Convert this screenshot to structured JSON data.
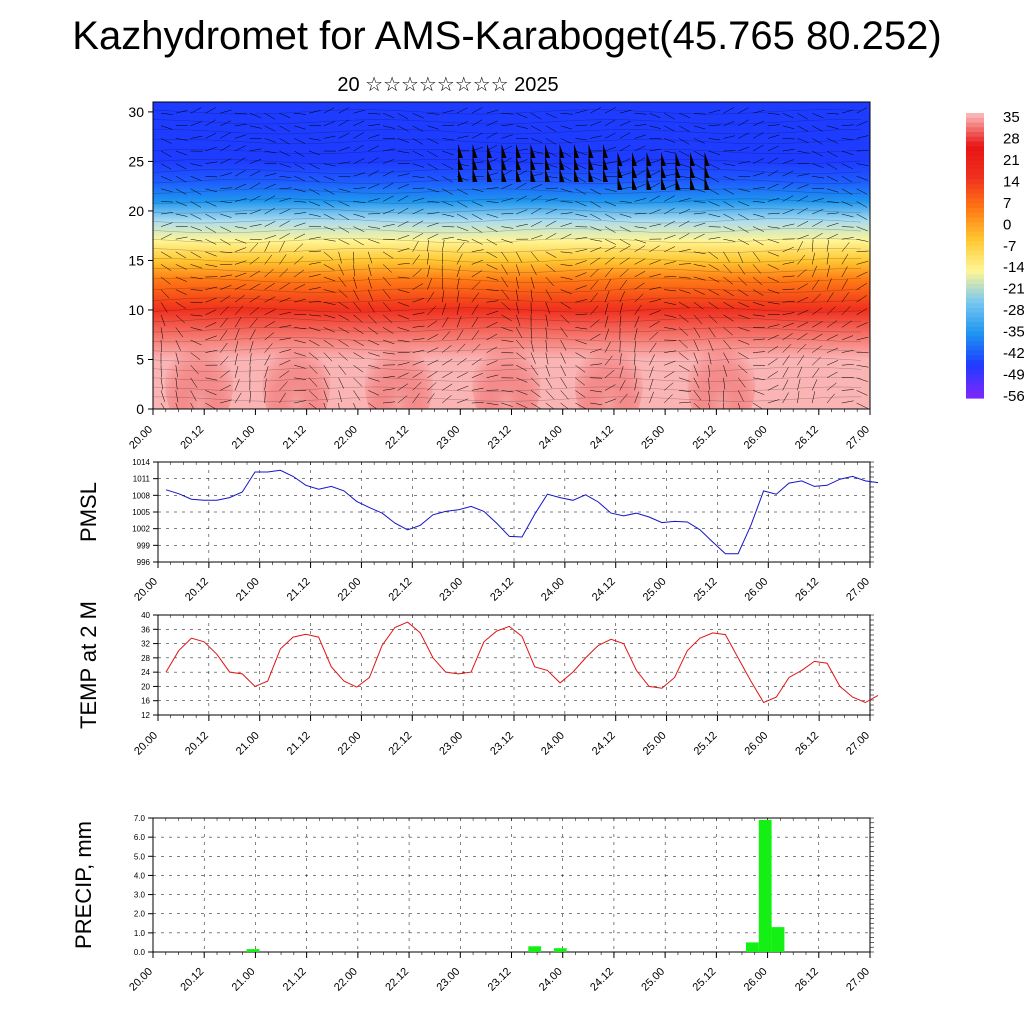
{
  "title": "Kazhydromet for AMS-Karaboget(45.765 80.252)",
  "subtitle": "20 ☆☆☆☆☆☆☆☆ 2025",
  "time_ticks": [
    "20.00",
    "20.12",
    "21.00",
    "21.12",
    "22.00",
    "22.12",
    "23.00",
    "23.12",
    "24.00",
    "24.12",
    "25.00",
    "25.12",
    "26.00",
    "26.12",
    "27.00"
  ],
  "colorbar": {
    "labels": [
      "35",
      "28",
      "21",
      "14",
      "7",
      "0",
      "-7",
      "-14",
      "-21",
      "-28",
      "-35",
      "-42",
      "-49",
      "-56"
    ],
    "colors": [
      "#fab4b4",
      "#e81414",
      "#f0301e",
      "#ff7814",
      "#ffc832",
      "#fff596",
      "#78c8f0",
      "#1e96f0",
      "#1e3cff",
      "#7828ff"
    ]
  },
  "chart_data": [
    {
      "type": "heatmap",
      "name": "cross_section",
      "title": "",
      "xlabel": "",
      "ylabel": "",
      "yticks": [
        0,
        5,
        10,
        15,
        20,
        25,
        30
      ],
      "ylim": [
        0,
        31
      ],
      "xlim": [
        0,
        7
      ],
      "note_levels": "temperature colour with height; wind barbs overlaid",
      "level_profile": [
        {
          "y": 0,
          "value": 33
        },
        {
          "y": 5,
          "value": 30
        },
        {
          "y": 10,
          "value": 22
        },
        {
          "y": 13,
          "value": 12
        },
        {
          "y": 15,
          "value": 2
        },
        {
          "y": 17,
          "value": -8
        },
        {
          "y": 19,
          "value": -18
        },
        {
          "y": 21,
          "value": -30
        },
        {
          "y": 23,
          "value": -42
        },
        {
          "y": 25,
          "value": -52
        },
        {
          "y": 27,
          "value": -48
        },
        {
          "y": 31,
          "value": -58
        }
      ]
    },
    {
      "type": "line",
      "name": "pmsl",
      "ylabel": "PMSL",
      "yticks": [
        996,
        999,
        1002,
        1005,
        1008,
        1011,
        1014
      ],
      "ylim": [
        996,
        1014
      ],
      "xlim": [
        0,
        7
      ],
      "color": "#1414c8",
      "x": [
        0,
        0.125,
        0.25,
        0.375,
        0.5,
        0.625,
        0.75,
        0.875,
        1.0,
        1.125,
        1.25,
        1.375,
        1.5,
        1.625,
        1.75,
        1.875,
        2.0,
        2.125,
        2.25,
        2.375,
        2.5,
        2.625,
        2.75,
        2.875,
        3.0,
        3.125,
        3.25,
        3.375,
        3.5,
        3.625,
        3.75,
        3.875,
        4.0,
        4.125,
        4.25,
        4.375,
        4.5,
        4.625,
        4.75,
        4.875,
        5.0,
        5.125,
        5.25,
        5.375,
        5.5,
        5.625,
        5.75,
        5.875,
        6.0,
        6.125,
        6.25,
        6.375,
        6.5,
        6.625,
        6.75,
        6.875,
        7.0
      ],
      "values": [
        1009,
        1008.3,
        1007.3,
        1007.1,
        1007.1,
        1007.6,
        1008.6,
        1012.2,
        1012.2,
        1012.5,
        1011.4,
        1009.8,
        1009.1,
        1009.6,
        1008.8,
        1006.9,
        1005.8,
        1004.8,
        1003,
        1001.8,
        1002.6,
        1004.5,
        1005.1,
        1005.4,
        1006,
        1005.1,
        1003,
        1000.6,
        1000.5,
        1004.6,
        1008.2,
        1007.6,
        1007.1,
        1008.1,
        1006.8,
        1004.8,
        1004.3,
        1004.8,
        1004.1,
        1003.1,
        1003.3,
        1003.2,
        1001.8,
        999.6,
        997.5,
        997.5,
        1002.6,
        1008.8,
        1008.2,
        1010.2,
        1010.6,
        1009.6,
        1009.8,
        1010.9,
        1011.4,
        1010.6,
        1010.3
      ]
    },
    {
      "type": "line",
      "name": "temp",
      "ylabel": "TEMP at 2 M",
      "yticks": [
        12,
        16,
        20,
        24,
        28,
        32,
        36,
        40
      ],
      "ylim": [
        12,
        40
      ],
      "xlim": [
        0,
        7
      ],
      "color": "#e01414",
      "x": [
        0,
        0.125,
        0.25,
        0.375,
        0.5,
        0.625,
        0.75,
        0.875,
        1.0,
        1.125,
        1.25,
        1.375,
        1.5,
        1.625,
        1.75,
        1.875,
        2.0,
        2.125,
        2.25,
        2.375,
        2.5,
        2.625,
        2.75,
        2.875,
        3.0,
        3.125,
        3.25,
        3.375,
        3.5,
        3.625,
        3.75,
        3.875,
        4.0,
        4.125,
        4.25,
        4.375,
        4.5,
        4.625,
        4.75,
        4.875,
        5.0,
        5.125,
        5.25,
        5.375,
        5.5,
        5.625,
        5.75,
        5.875,
        6.0,
        6.125,
        6.25,
        6.375,
        6.5,
        6.625,
        6.75,
        6.875,
        7.0
      ],
      "values": [
        24,
        30,
        33.5,
        32.5,
        29,
        24,
        23.5,
        20,
        21.5,
        30.5,
        33.8,
        34.6,
        33.8,
        25.5,
        21.5,
        19.8,
        22.5,
        31.5,
        36.5,
        38,
        35,
        28,
        24,
        23.5,
        24,
        32.5,
        35.5,
        36.8,
        34,
        25.5,
        24.5,
        21,
        24,
        28,
        31.5,
        33.2,
        32,
        24.5,
        20,
        19.5,
        22.5,
        30,
        33.5,
        35,
        34.5,
        28,
        21.5,
        15.5,
        17,
        22.5,
        24.5,
        27,
        26.5,
        20,
        17,
        15.5,
        17.5
      ]
    },
    {
      "type": "bar",
      "name": "precip",
      "ylabel": "PRECIP, mm",
      "yticks": [
        "0.0",
        "1.0",
        "2.0",
        "3.0",
        "4.0",
        "5.0",
        "6.0",
        "7.0"
      ],
      "ylim": [
        0,
        7
      ],
      "xlim": [
        0,
        7
      ],
      "color": "#14f014",
      "x": [
        0.875,
        3.625,
        3.875,
        5.75,
        5.875,
        6.0
      ],
      "values": [
        0.15,
        0.3,
        0.2,
        0.5,
        6.9,
        1.3
      ]
    }
  ]
}
